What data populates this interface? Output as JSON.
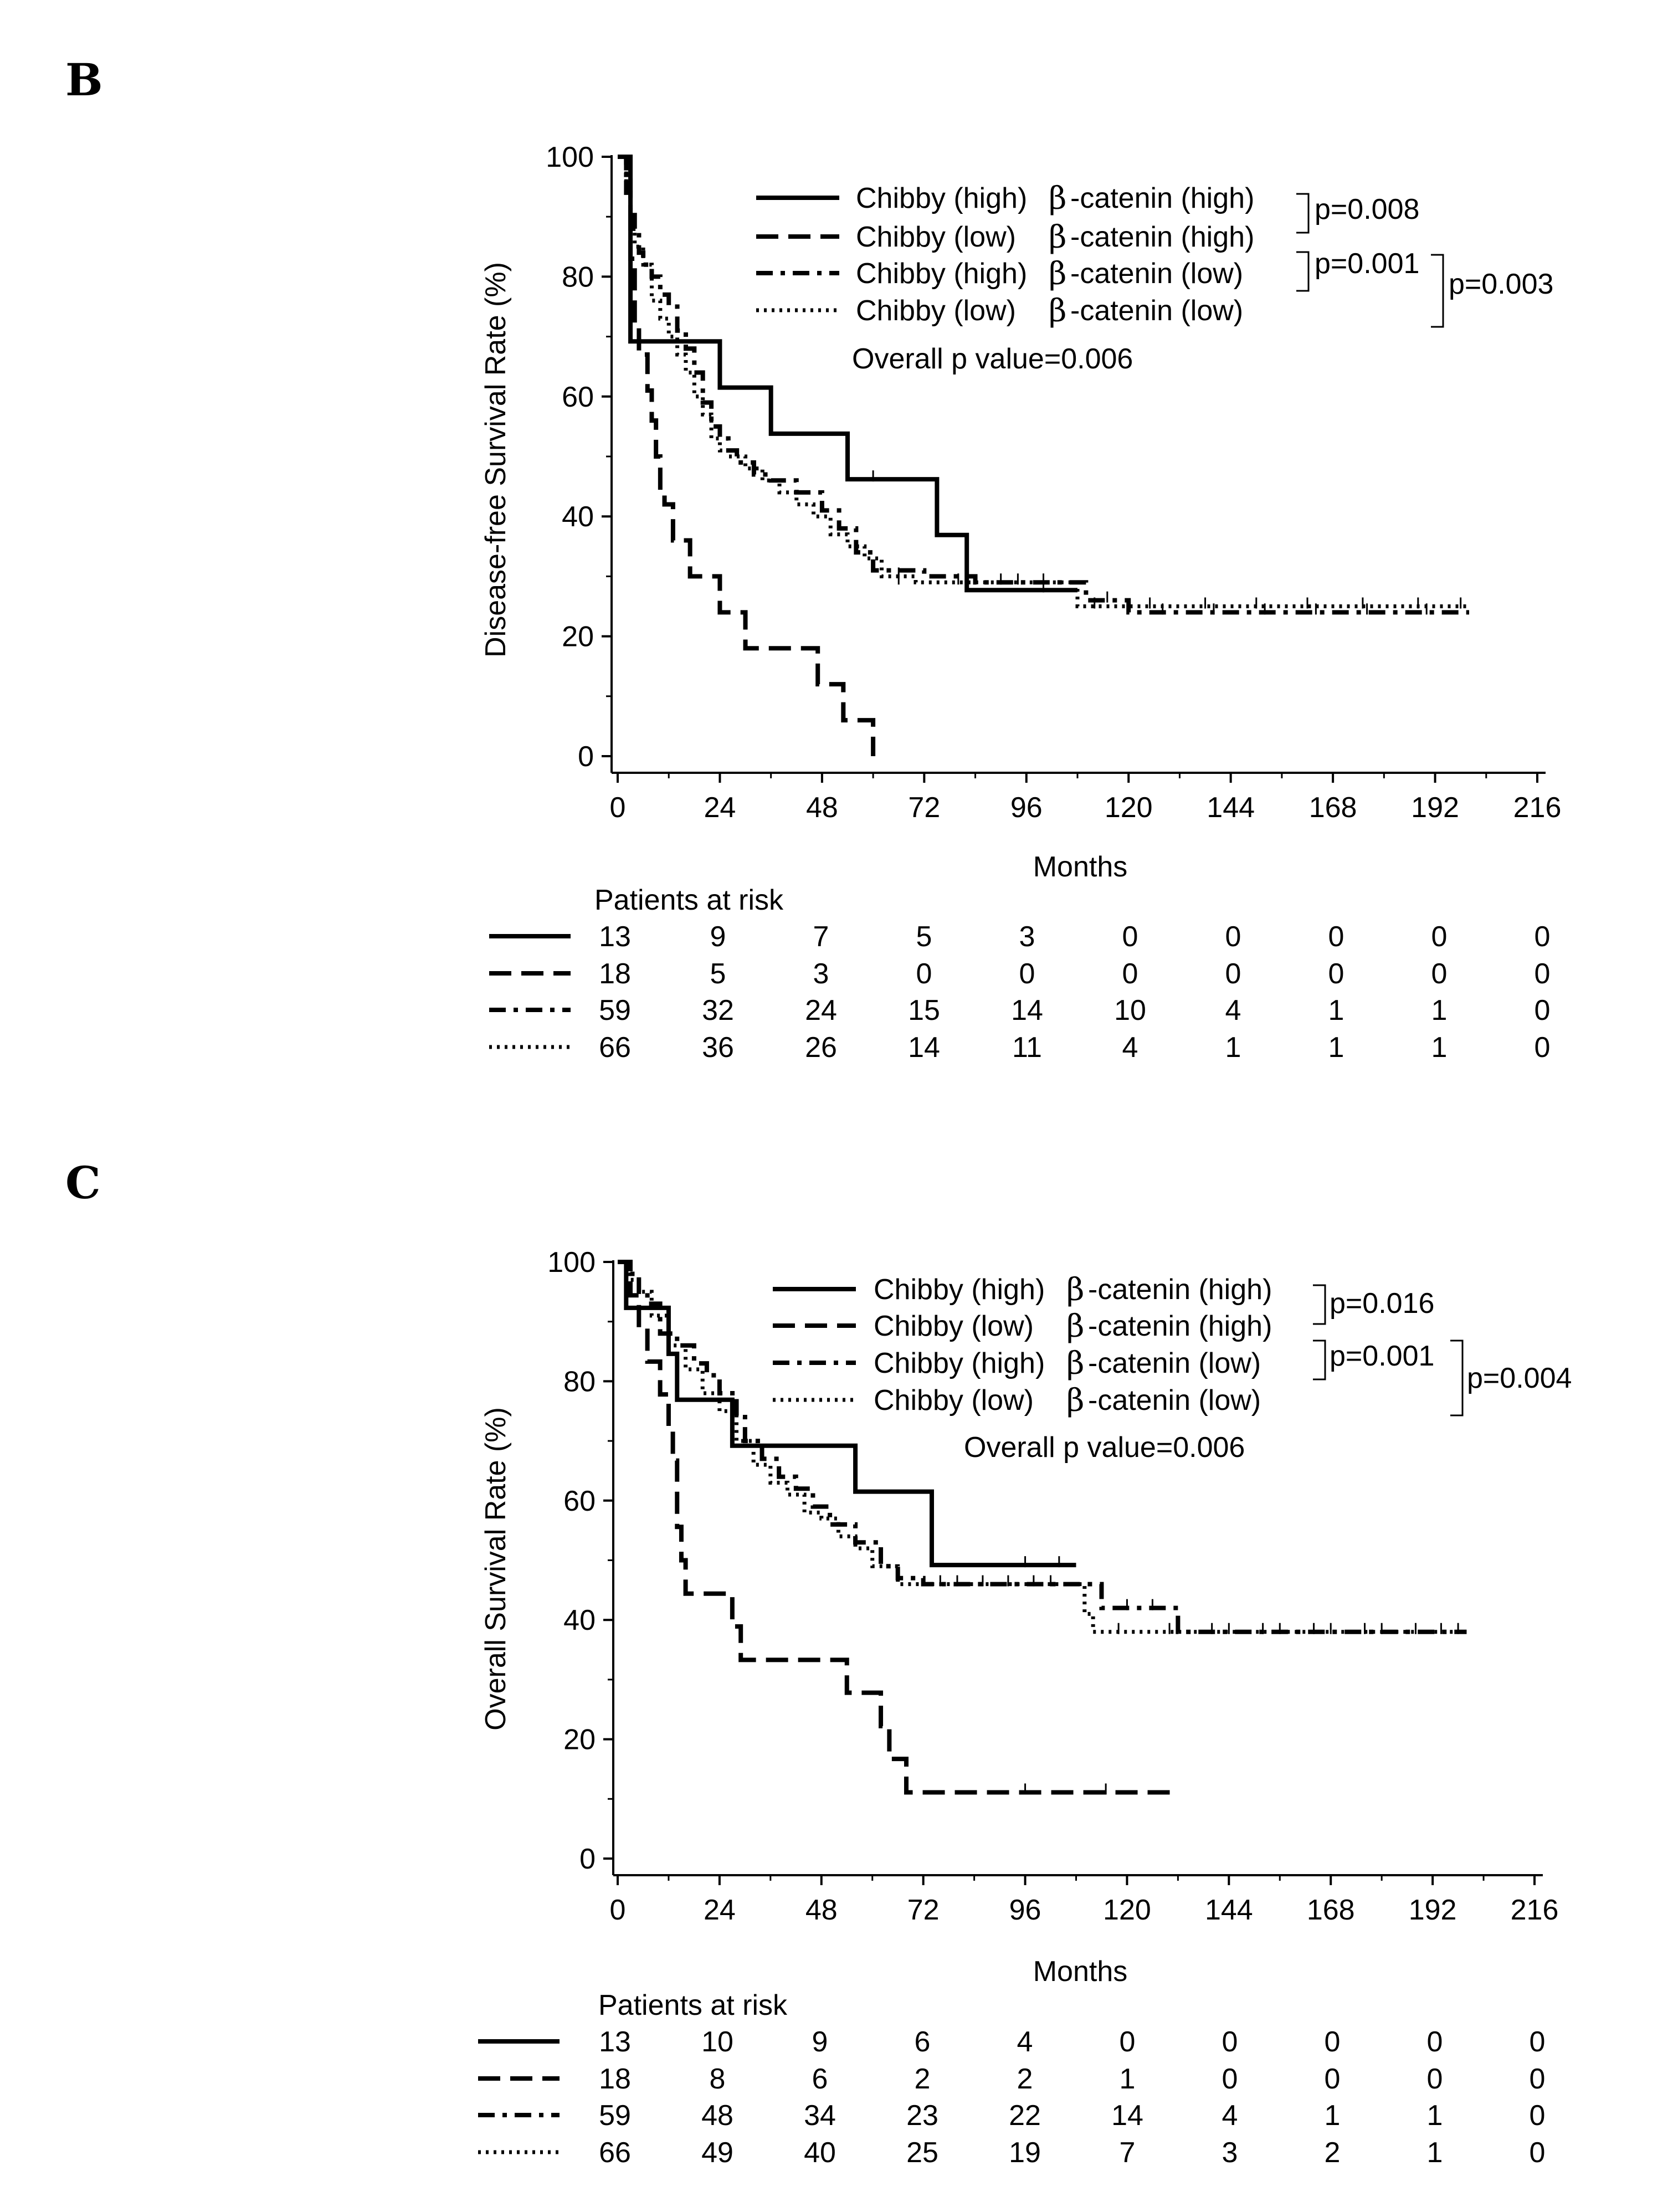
{
  "chart_data": [
    {
      "type": "line",
      "panel_label": "B",
      "ylabel": "Disease-free Survival Rate (%)",
      "xlabel": "Months",
      "xlim": [
        0,
        216
      ],
      "ylim": [
        0,
        100
      ],
      "x_ticks": [
        0,
        24,
        48,
        72,
        96,
        120,
        144,
        168,
        192,
        216
      ],
      "y_ticks": [
        0,
        20,
        40,
        60,
        80,
        100
      ],
      "legend_entries": [
        {
          "prefix": "Chibby (high)",
          "beta": "β",
          "suffix": "-catenin (high)"
        },
        {
          "prefix": "Chibby (low)",
          "beta": "β",
          "suffix": "-catenin (high)"
        },
        {
          "prefix": "Chibby (high)",
          "beta": "β",
          "suffix": "-catenin (low)"
        },
        {
          "prefix": "Chibby (low)",
          "beta": "β",
          "suffix": "-catenin (low)"
        }
      ],
      "pvalues": [
        "p=0.008",
        "p=0.001",
        "p=0.003"
      ],
      "overall_p": "Overall p value=0.006",
      "risk_title": "Patients at risk",
      "risk_table": [
        [
          "13",
          "9",
          "7",
          "5",
          "3",
          "0",
          "0",
          "0",
          "0",
          "0"
        ],
        [
          "18",
          "5",
          "3",
          "0",
          "0",
          "0",
          "0",
          "0",
          "0",
          "0"
        ],
        [
          "59",
          "32",
          "24",
          "15",
          "14",
          "10",
          "4",
          "1",
          "1",
          "0"
        ],
        [
          "66",
          "36",
          "26",
          "14",
          "11",
          "4",
          "1",
          "1",
          "1",
          "0"
        ]
      ],
      "series": [
        {
          "name": "Chibby (high) β-catenin (high)",
          "style": "solid",
          "points": [
            [
              0,
              100
            ],
            [
              3,
              69.2
            ],
            [
              24,
              61.5
            ],
            [
              36,
              53.8
            ],
            [
              54,
              46.2
            ],
            [
              75,
              36.9
            ],
            [
              82,
              27.7
            ],
            [
              108,
              27.7
            ]
          ],
          "censors": [
            [
              60,
              46.2
            ],
            [
              100,
              27.7
            ]
          ]
        },
        {
          "name": "Chibby (low) β-catenin (high)",
          "style": "dash",
          "points": [
            [
              0,
              100
            ],
            [
              2,
              94
            ],
            [
              3,
              83
            ],
            [
              4,
              72
            ],
            [
              5,
              67
            ],
            [
              7,
              61
            ],
            [
              8,
              56
            ],
            [
              9,
              50
            ],
            [
              10,
              44
            ],
            [
              11,
              42
            ],
            [
              13,
              36
            ],
            [
              17,
              30
            ],
            [
              24,
              24
            ],
            [
              30,
              18
            ],
            [
              47,
              12
            ],
            [
              53,
              6
            ],
            [
              60,
              0
            ]
          ],
          "censors": []
        },
        {
          "name": "Chibby (high) β-catenin (low)",
          "style": "dashdot",
          "points": [
            [
              0,
              100
            ],
            [
              2,
              96
            ],
            [
              3,
              91
            ],
            [
              4,
              88
            ],
            [
              5,
              84
            ],
            [
              6,
              82
            ],
            [
              8,
              80
            ],
            [
              10,
              77
            ],
            [
              12,
              75
            ],
            [
              14,
              71
            ],
            [
              16,
              68
            ],
            [
              18,
              64
            ],
            [
              20,
              59
            ],
            [
              22,
              55
            ],
            [
              24,
              53
            ],
            [
              26,
              51
            ],
            [
              28,
              49
            ],
            [
              32,
              47
            ],
            [
              36,
              46
            ],
            [
              42,
              44
            ],
            [
              48,
              41
            ],
            [
              52,
              38
            ],
            [
              56,
              34
            ],
            [
              60,
              31
            ],
            [
              72,
              30
            ],
            [
              84,
              29
            ],
            [
              110,
              26
            ],
            [
              120,
              24
            ],
            [
              200,
              24
            ]
          ],
          "censors": [
            [
              66,
              30
            ],
            [
              94,
              29
            ],
            [
              100,
              29
            ],
            [
              115,
              26
            ],
            [
              128,
              24
            ],
            [
              140,
              24
            ],
            [
              152,
              24
            ],
            [
              164,
              24
            ],
            [
              176,
              24
            ],
            [
              190,
              24
            ]
          ]
        },
        {
          "name": "Chibby (low) β-catenin (low)",
          "style": "dot",
          "points": [
            [
              0,
              100
            ],
            [
              2,
              95
            ],
            [
              3,
              89
            ],
            [
              4,
              85
            ],
            [
              6,
              82
            ],
            [
              8,
              76
            ],
            [
              10,
              73
            ],
            [
              12,
              70
            ],
            [
              14,
              67
            ],
            [
              16,
              64
            ],
            [
              18,
              60
            ],
            [
              20,
              57
            ],
            [
              22,
              53
            ],
            [
              24,
              51
            ],
            [
              26,
              50
            ],
            [
              30,
              48
            ],
            [
              34,
              46
            ],
            [
              38,
              44
            ],
            [
              42,
              42
            ],
            [
              46,
              40
            ],
            [
              50,
              37
            ],
            [
              54,
              35
            ],
            [
              58,
              33
            ],
            [
              62,
              30
            ],
            [
              70,
              29
            ],
            [
              84,
              29
            ],
            [
              106,
              29
            ],
            [
              108,
              25
            ],
            [
              200,
              25
            ]
          ],
          "censors": [
            [
              66,
              29
            ],
            [
              80,
              29
            ],
            [
              90,
              29
            ],
            [
              112,
              25
            ],
            [
              125,
              25
            ],
            [
              138,
              25
            ],
            [
              150,
              25
            ],
            [
              162,
              25
            ],
            [
              175,
              25
            ],
            [
              188,
              25
            ],
            [
              198,
              25
            ]
          ]
        }
      ]
    },
    {
      "type": "line",
      "panel_label": "C",
      "ylabel": "Overall Survival Rate (%)",
      "xlabel": "Months",
      "xlim": [
        0,
        216
      ],
      "ylim": [
        0,
        100
      ],
      "x_ticks": [
        0,
        24,
        48,
        72,
        96,
        120,
        144,
        168,
        192,
        216
      ],
      "y_ticks": [
        0,
        20,
        40,
        60,
        80,
        100
      ],
      "legend_entries": [
        {
          "prefix": "Chibby (high)",
          "beta": "β",
          "suffix": "-catenin (high)"
        },
        {
          "prefix": "Chibby (low)",
          "beta": "β",
          "suffix": "-catenin (high)"
        },
        {
          "prefix": "Chibby (high)",
          "beta": "β",
          "suffix": "-catenin (low)"
        },
        {
          "prefix": "Chibby (low)",
          "beta": "β",
          "suffix": "-catenin (low)"
        }
      ],
      "pvalues": [
        "p=0.016",
        "p=0.001",
        "p=0.004"
      ],
      "overall_p": "Overall p value=0.006",
      "risk_title": "Patients at risk",
      "risk_table": [
        [
          "13",
          "10",
          "9",
          "6",
          "4",
          "0",
          "0",
          "0",
          "0",
          "0"
        ],
        [
          "18",
          "8",
          "6",
          "2",
          "2",
          "1",
          "0",
          "0",
          "0",
          "0"
        ],
        [
          "59",
          "48",
          "34",
          "23",
          "22",
          "14",
          "4",
          "1",
          "1",
          "0"
        ],
        [
          "66",
          "49",
          "40",
          "25",
          "19",
          "7",
          "3",
          "2",
          "1",
          "0"
        ]
      ],
      "series": [
        {
          "name": "Chibby (high) β-catenin (high)",
          "style": "solid",
          "points": [
            [
              0,
              100
            ],
            [
              2,
              92.3
            ],
            [
              12,
              84.6
            ],
            [
              14,
              76.9
            ],
            [
              27,
              69.2
            ],
            [
              56,
              61.5
            ],
            [
              74,
              49.2
            ],
            [
              108,
              49.2
            ]
          ],
          "censors": [
            [
              96,
              49.2
            ],
            [
              104,
              49.2
            ]
          ]
        },
        {
          "name": "Chibby (low) β-catenin (high)",
          "style": "dash",
          "points": [
            [
              0,
              100
            ],
            [
              3,
              94.4
            ],
            [
              5,
              88.9
            ],
            [
              7,
              83.3
            ],
            [
              10,
              77.8
            ],
            [
              12,
              72.2
            ],
            [
              13,
              66.7
            ],
            [
              14,
              55.6
            ],
            [
              15,
              50
            ],
            [
              16,
              44.4
            ],
            [
              27,
              38.9
            ],
            [
              29,
              33.3
            ],
            [
              54,
              27.8
            ],
            [
              62,
              22.2
            ],
            [
              64,
              16.7
            ],
            [
              68,
              11.1
            ],
            [
              132,
              11.1
            ]
          ],
          "censors": [
            [
              96,
              11.1
            ],
            [
              115,
              11.1
            ]
          ]
        },
        {
          "name": "Chibby (high) β-catenin (low)",
          "style": "dashdot",
          "points": [
            [
              0,
              100
            ],
            [
              3,
              98
            ],
            [
              5,
              95
            ],
            [
              7,
              93
            ],
            [
              10,
              88
            ],
            [
              14,
              86
            ],
            [
              18,
              83
            ],
            [
              21,
              81
            ],
            [
              24,
              78
            ],
            [
              28,
              74
            ],
            [
              30,
              70
            ],
            [
              34,
              67
            ],
            [
              38,
              64
            ],
            [
              42,
              62
            ],
            [
              46,
              59
            ],
            [
              50,
              56
            ],
            [
              56,
              53
            ],
            [
              62,
              49
            ],
            [
              66,
              47
            ],
            [
              72,
              46
            ],
            [
              110,
              46
            ],
            [
              114,
              42
            ],
            [
              132,
              42
            ],
            [
              132,
              38
            ],
            [
              200,
              38
            ]
          ],
          "censors": [
            [
              80,
              46
            ],
            [
              92,
              46
            ],
            [
              102,
              46
            ],
            [
              120,
              42
            ],
            [
              126,
              42
            ],
            [
              140,
              38
            ],
            [
              152,
              38
            ],
            [
              164,
              38
            ],
            [
              176,
              38
            ],
            [
              188,
              38
            ],
            [
              198,
              38
            ]
          ]
        },
        {
          "name": "Chibby (low) β-catenin (low)",
          "style": "dot",
          "points": [
            [
              0,
              100
            ],
            [
              3,
              97
            ],
            [
              5,
              95
            ],
            [
              8,
              91
            ],
            [
              12,
              86
            ],
            [
              16,
              82
            ],
            [
              20,
              78
            ],
            [
              24,
              75
            ],
            [
              28,
              70
            ],
            [
              32,
              66
            ],
            [
              36,
              63
            ],
            [
              40,
              61
            ],
            [
              44,
              58
            ],
            [
              48,
              57
            ],
            [
              52,
              54
            ],
            [
              56,
              52
            ],
            [
              60,
              49
            ],
            [
              66,
              46
            ],
            [
              70,
              46
            ],
            [
              108,
              46
            ],
            [
              110,
              41
            ],
            [
              112,
              38
            ],
            [
              200,
              38
            ]
          ],
          "censors": [
            [
              76,
              46
            ],
            [
              86,
              46
            ],
            [
              98,
              46
            ],
            [
              118,
              38
            ],
            [
              130,
              38
            ],
            [
              144,
              38
            ],
            [
              156,
              38
            ],
            [
              168,
              38
            ],
            [
              180,
              38
            ],
            [
              194,
              38
            ]
          ]
        }
      ]
    }
  ]
}
